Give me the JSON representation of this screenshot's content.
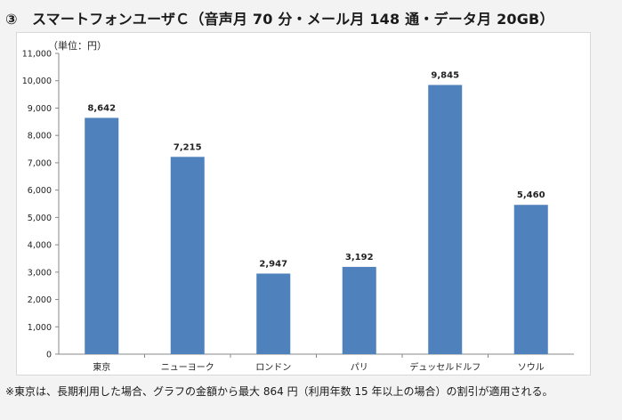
{
  "chart_data": {
    "type": "bar",
    "title": "③　スマートフォンユーザＣ（音声月 70 分・メール月 148 通・データ月 20GB）",
    "unit_label": "（単位：円）",
    "categories": [
      "東京",
      "ニューヨーク",
      "ロンドン",
      "パリ",
      "デュッセルドルフ",
      "ソウル"
    ],
    "values": [
      8642,
      7215,
      2947,
      3192,
      9845,
      5460
    ],
    "value_labels": [
      "8,642",
      "7,215",
      "2,947",
      "3,192",
      "9,845",
      "5,460"
    ],
    "ylim": [
      0,
      11000
    ],
    "yticks": [
      "0",
      "1,000",
      "2,000",
      "3,000",
      "4,000",
      "5,000",
      "6,000",
      "7,000",
      "8,000",
      "9,000",
      "10,000",
      "11,000"
    ],
    "grid": false,
    "colors": {
      "bar": "#4f81bd",
      "axis": "#888888"
    }
  },
  "footnote": "※東京は、長期利用した場合、グラフの金額から最大 864 円（利用年数 15 年以上の場合）の割引が適用される。"
}
